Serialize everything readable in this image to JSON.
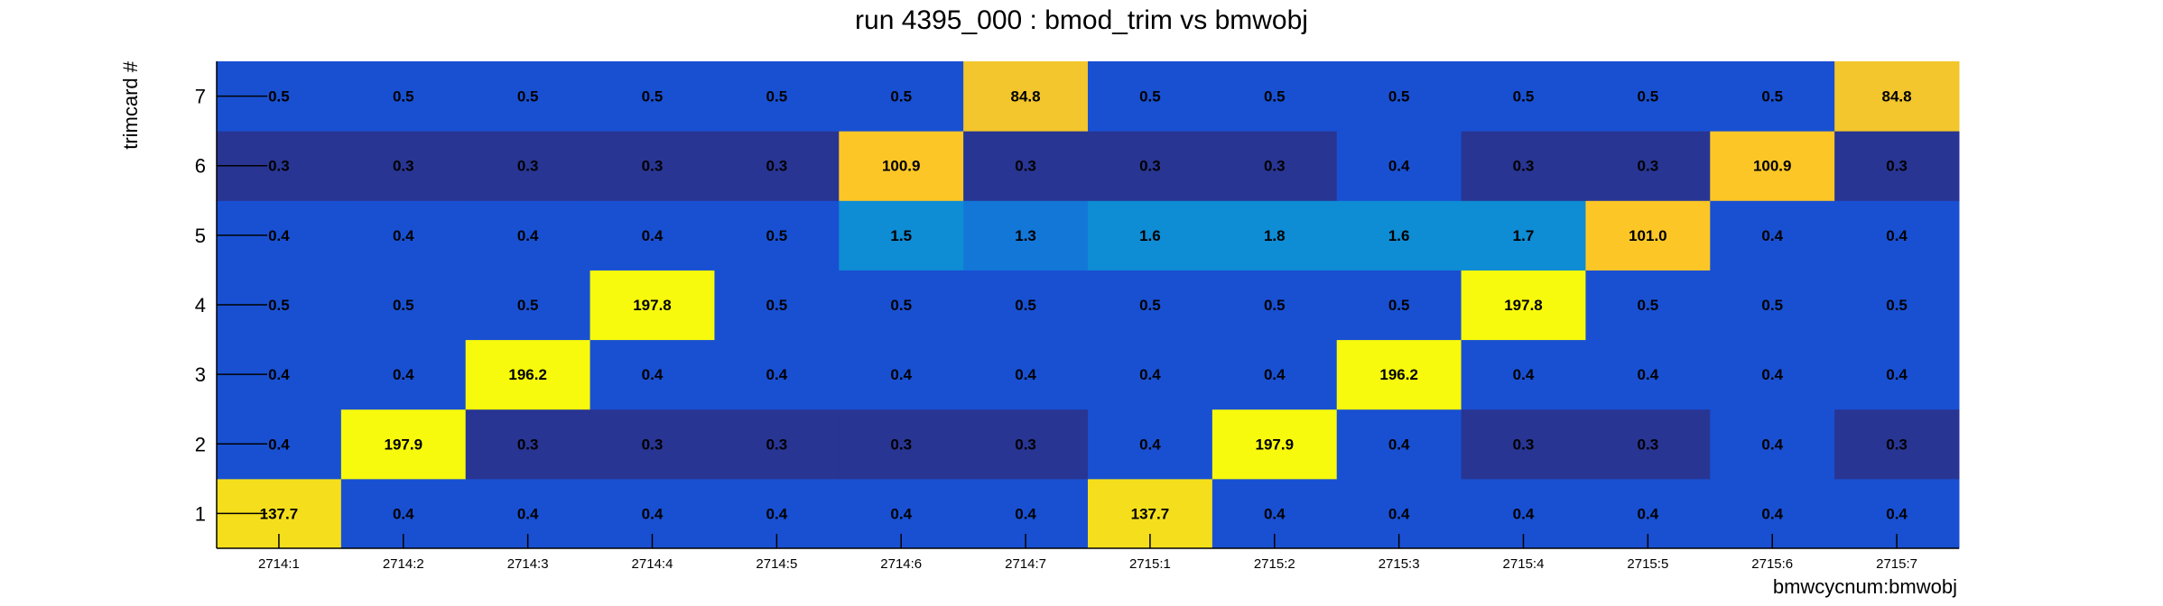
{
  "chart_data": {
    "type": "heatmap",
    "title": "run 4395_000 : bmod_trim vs bmwobj",
    "xlabel": "bmwcycnum:bmwobj",
    "ylabel": "trimcard #",
    "x_categories": [
      "2714:1",
      "2714:2",
      "2714:3",
      "2714:4",
      "2714:5",
      "2714:6",
      "2714:7",
      "2715:1",
      "2715:2",
      "2715:3",
      "2715:4",
      "2715:5",
      "2715:6",
      "2715:7"
    ],
    "y_categories": [
      "1",
      "2",
      "3",
      "4",
      "5",
      "6",
      "7"
    ],
    "values": [
      [
        137.7,
        0.4,
        0.4,
        0.4,
        0.4,
        0.4,
        0.4,
        137.7,
        0.4,
        0.4,
        0.4,
        0.4,
        0.4,
        0.4
      ],
      [
        0.4,
        197.9,
        0.3,
        0.3,
        0.3,
        0.3,
        0.3,
        0.4,
        197.9,
        0.4,
        0.3,
        0.3,
        0.4,
        0.3
      ],
      [
        0.4,
        0.4,
        196.2,
        0.4,
        0.4,
        0.4,
        0.4,
        0.4,
        0.4,
        196.2,
        0.4,
        0.4,
        0.4,
        0.4
      ],
      [
        0.5,
        0.5,
        0.5,
        197.8,
        0.5,
        0.5,
        0.5,
        0.5,
        0.5,
        0.5,
        197.8,
        0.5,
        0.5,
        0.5
      ],
      [
        0.4,
        0.4,
        0.4,
        0.4,
        0.5,
        1.5,
        1.3,
        1.6,
        1.8,
        1.6,
        1.7,
        101.0,
        0.4,
        0.4
      ],
      [
        0.3,
        0.3,
        0.3,
        0.3,
        0.3,
        100.9,
        0.3,
        0.3,
        0.3,
        0.4,
        0.3,
        0.3,
        100.9,
        0.3
      ],
      [
        0.5,
        0.5,
        0.5,
        0.5,
        0.5,
        0.5,
        84.8,
        0.5,
        0.5,
        0.5,
        0.5,
        0.5,
        0.5,
        84.8
      ]
    ],
    "cell_labels": [
      [
        "137.7",
        "0.4",
        "0.4",
        "0.4",
        "0.4",
        "0.4",
        "0.4",
        "137.7",
        "0.4",
        "0.4",
        "0.4",
        "0.4",
        "0.4",
        "0.4"
      ],
      [
        "0.4",
        "197.9",
        "0.3",
        "0.3",
        "0.3",
        "0.3",
        "0.3",
        "0.4",
        "197.9",
        "0.4",
        "0.3",
        "0.3",
        "0.4",
        "0.3"
      ],
      [
        "0.4",
        "0.4",
        "196.2",
        "0.4",
        "0.4",
        "0.4",
        "0.4",
        "0.4",
        "0.4",
        "196.2",
        "0.4",
        "0.4",
        "0.4",
        "0.4"
      ],
      [
        "0.5",
        "0.5",
        "0.5",
        "197.8",
        "0.5",
        "0.5",
        "0.5",
        "0.5",
        "0.5",
        "0.5",
        "197.8",
        "0.5",
        "0.5",
        "0.5"
      ],
      [
        "0.4",
        "0.4",
        "0.4",
        "0.4",
        "0.5",
        "1.5",
        "1.3",
        "1.6",
        "1.8",
        "1.6",
        "1.7",
        "101.0",
        "0.4",
        "0.4"
      ],
      [
        "0.3",
        "0.3",
        "0.3",
        "0.3",
        "0.3",
        "100.9",
        "0.3",
        "0.3",
        "0.3",
        "0.4",
        "0.3",
        "0.3",
        "100.9",
        "0.3"
      ],
      [
        "0.5",
        "0.5",
        "0.5",
        "0.5",
        "0.5",
        "0.5",
        "84.8",
        "0.5",
        "0.5",
        "0.5",
        "0.5",
        "0.5",
        "0.5",
        "84.8"
      ]
    ],
    "colors": {
      "low": "#283593",
      "bin_03": "#283593",
      "bin_04": "#1950d2",
      "bin_05": "#1950d2",
      "bin_13": "#1377d8",
      "bin_15": "#0e8cd4",
      "mid_85": "#f2c62c",
      "mid_100": "#fcc726",
      "mid_138": "#f5df1c",
      "high": "#f8fa0d"
    },
    "grid": false
  }
}
